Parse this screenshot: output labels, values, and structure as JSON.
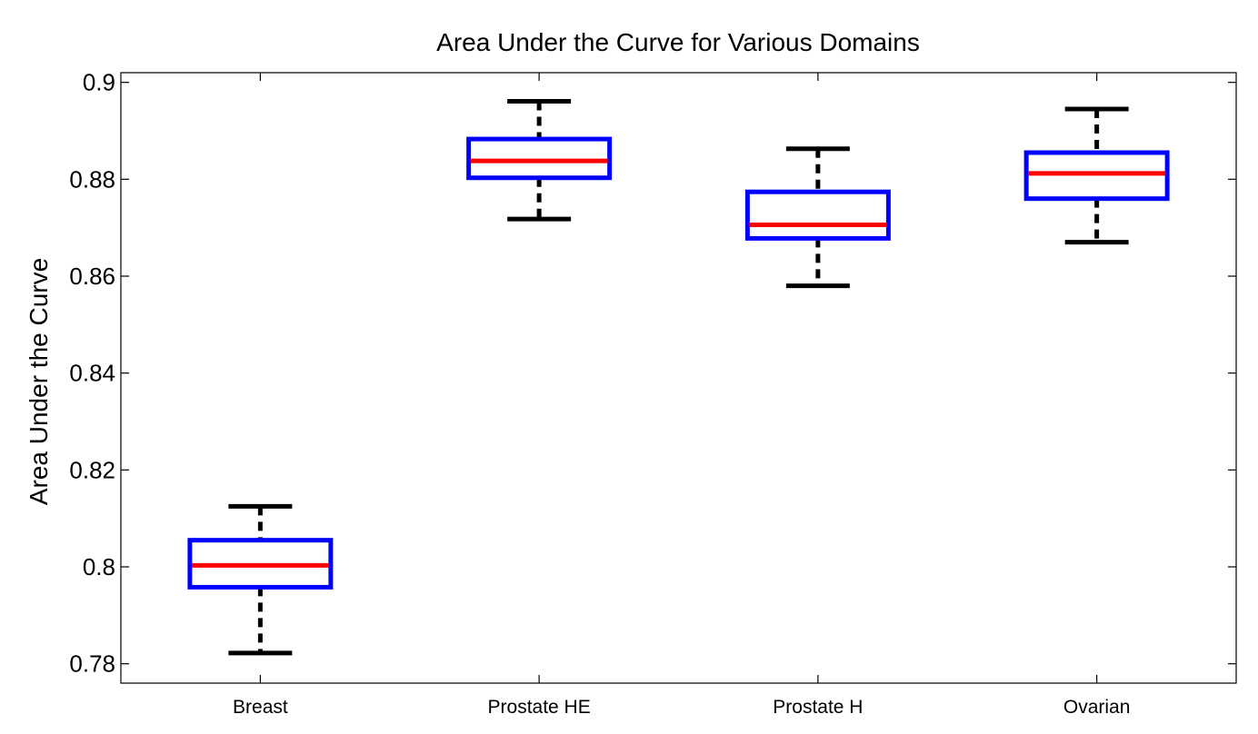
{
  "chart_data": {
    "type": "box",
    "title": "Area Under the Curve for Various Domains",
    "xlabel": "",
    "ylabel": "Area Under the Curve",
    "ylim": [
      0.776,
      0.902
    ],
    "yticks": [
      0.78,
      0.8,
      0.82,
      0.84,
      0.86,
      0.88,
      0.9
    ],
    "ytick_labels": [
      "0.78",
      "0.8",
      "0.82",
      "0.84",
      "0.86",
      "0.88",
      "0.9"
    ],
    "categories": [
      "Breast",
      "Prostate HE",
      "Prostate H",
      "Ovarian"
    ],
    "boxes": [
      {
        "category": "Breast",
        "whisker_low": 0.7822,
        "q1": 0.7958,
        "median": 0.8003,
        "q3": 0.8055,
        "whisker_high": 0.8125
      },
      {
        "category": "Prostate HE",
        "whisker_low": 0.8718,
        "q1": 0.8803,
        "median": 0.8838,
        "q3": 0.8883,
        "whisker_high": 0.8961
      },
      {
        "category": "Prostate H",
        "whisker_low": 0.858,
        "q1": 0.8678,
        "median": 0.8706,
        "q3": 0.8774,
        "whisker_high": 0.8863
      },
      {
        "category": "Ovarian",
        "whisker_low": 0.867,
        "q1": 0.876,
        "median": 0.8812,
        "q3": 0.8855,
        "whisker_high": 0.8945
      }
    ],
    "colors": {
      "box": "#0000ff",
      "median": "#ff0000",
      "whisker": "#000000"
    },
    "grid": false,
    "legend": "none"
  }
}
